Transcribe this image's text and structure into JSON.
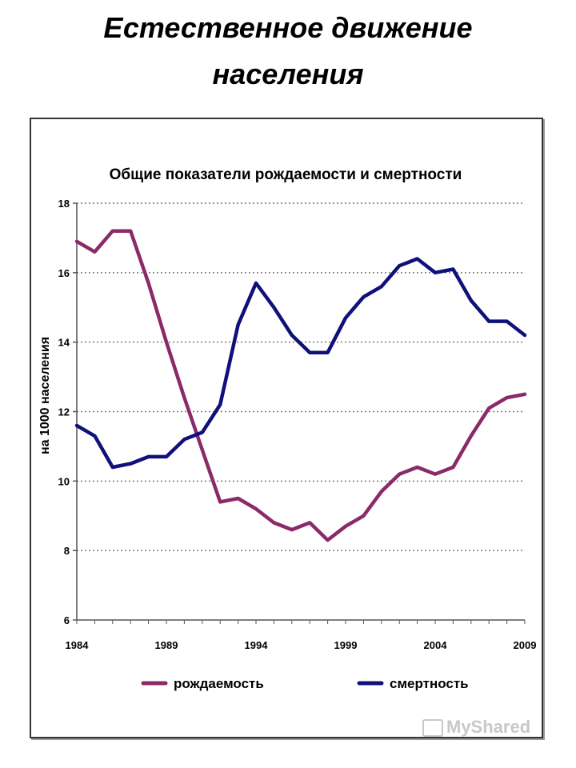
{
  "slide": {
    "title": "Естественное движение населения",
    "watermark": "MyShared"
  },
  "colors": {
    "birth": "#8b2a6a",
    "death": "#10107a",
    "grid": "#777777",
    "axis": "#555555"
  },
  "chart_data": {
    "type": "line",
    "title": "Общие показатели рождаемости и смертности",
    "xlabel": "",
    "ylabel": "на 1000 населения",
    "xlim": [
      1984,
      2009
    ],
    "ylim": [
      6,
      18
    ],
    "yticks": [
      6,
      8,
      10,
      12,
      14,
      16,
      18
    ],
    "xticks": [
      1984,
      1989,
      1994,
      1999,
      2004,
      2009
    ],
    "grid": "horizontal-dotted",
    "legend_position": "bottom",
    "x": [
      1984,
      1985,
      1986,
      1987,
      1988,
      1989,
      1990,
      1991,
      1992,
      1993,
      1994,
      1995,
      1996,
      1997,
      1998,
      1999,
      2000,
      2001,
      2002,
      2003,
      2004,
      2005,
      2006,
      2007,
      2008,
      2009
    ],
    "series": [
      {
        "name": "рождаемость",
        "color": "#8b2a6a",
        "values": [
          16.9,
          16.6,
          17.2,
          17.2,
          15.7,
          14.0,
          12.4,
          10.9,
          9.4,
          9.5,
          9.2,
          8.8,
          8.6,
          8.8,
          8.3,
          8.7,
          9.0,
          9.7,
          10.2,
          10.4,
          10.2,
          10.4,
          11.3,
          12.1,
          12.4,
          12.5
        ]
      },
      {
        "name": "смертность",
        "color": "#10107a",
        "values": [
          11.6,
          11.3,
          10.4,
          10.5,
          10.7,
          10.7,
          11.2,
          11.4,
          12.2,
          14.5,
          15.7,
          15.0,
          14.2,
          13.7,
          13.7,
          14.7,
          15.3,
          15.6,
          16.2,
          16.4,
          16.0,
          16.1,
          15.2,
          14.6,
          14.6,
          14.2
        ]
      }
    ]
  }
}
